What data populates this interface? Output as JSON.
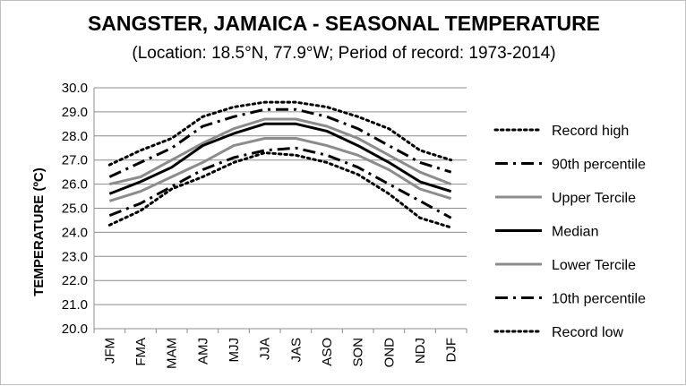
{
  "chart_data": {
    "type": "line",
    "title": "SANGSTER, JAMAICA - SEASONAL TEMPERATURE",
    "subtitle": "(Location: 18.5°N, 77.9°W; Period of record: 1973-2014)",
    "ylabel": "TEMPERATURE (ºC)",
    "xlabel": "",
    "ylim": [
      20.0,
      30.0
    ],
    "ytick_step": 1.0,
    "grid": true,
    "legend_position": "right",
    "categories": [
      "JFM",
      "FMA",
      "MAM",
      "AMJ",
      "MJJ",
      "JJA",
      "JAS",
      "ASO",
      "SON",
      "OND",
      "NDJ",
      "DJF"
    ],
    "series": [
      {
        "name": "Record high",
        "color": "#000000",
        "style": "dotted",
        "width": 3,
        "values": [
          26.8,
          27.4,
          27.9,
          28.8,
          29.2,
          29.4,
          29.4,
          29.2,
          28.8,
          28.3,
          27.4,
          27.0
        ]
      },
      {
        "name": "90th percentile",
        "color": "#000000",
        "style": "dashdot",
        "width": 3,
        "values": [
          26.3,
          26.9,
          27.5,
          28.4,
          28.8,
          29.1,
          29.1,
          28.8,
          28.3,
          27.6,
          26.9,
          26.5
        ]
      },
      {
        "name": "Upper Tercile",
        "color": "#8c8c8c",
        "style": "solid",
        "width": 3,
        "values": [
          26.0,
          26.3,
          27.0,
          27.7,
          28.3,
          28.7,
          28.7,
          28.4,
          27.9,
          27.2,
          26.5,
          26.0
        ]
      },
      {
        "name": "Median",
        "color": "#000000",
        "style": "solid",
        "width": 3,
        "values": [
          25.6,
          26.1,
          26.7,
          27.6,
          28.1,
          28.5,
          28.5,
          28.2,
          27.6,
          26.9,
          26.1,
          25.7
        ]
      },
      {
        "name": "Lower Tercile",
        "color": "#8c8c8c",
        "style": "solid",
        "width": 3,
        "values": [
          25.3,
          25.7,
          26.3,
          26.9,
          27.6,
          27.9,
          27.9,
          27.6,
          27.2,
          26.6,
          25.8,
          25.4
        ]
      },
      {
        "name": "10th percentile",
        "color": "#000000",
        "style": "dashdot",
        "width": 3,
        "values": [
          24.7,
          25.2,
          25.9,
          26.6,
          27.1,
          27.4,
          27.5,
          27.2,
          26.7,
          26.0,
          25.3,
          24.6
        ]
      },
      {
        "name": "Record low",
        "color": "#000000",
        "style": "dotted",
        "width": 3,
        "values": [
          24.3,
          24.9,
          25.8,
          26.3,
          26.9,
          27.3,
          27.2,
          26.9,
          26.4,
          25.6,
          24.6,
          24.2
        ]
      }
    ]
  }
}
